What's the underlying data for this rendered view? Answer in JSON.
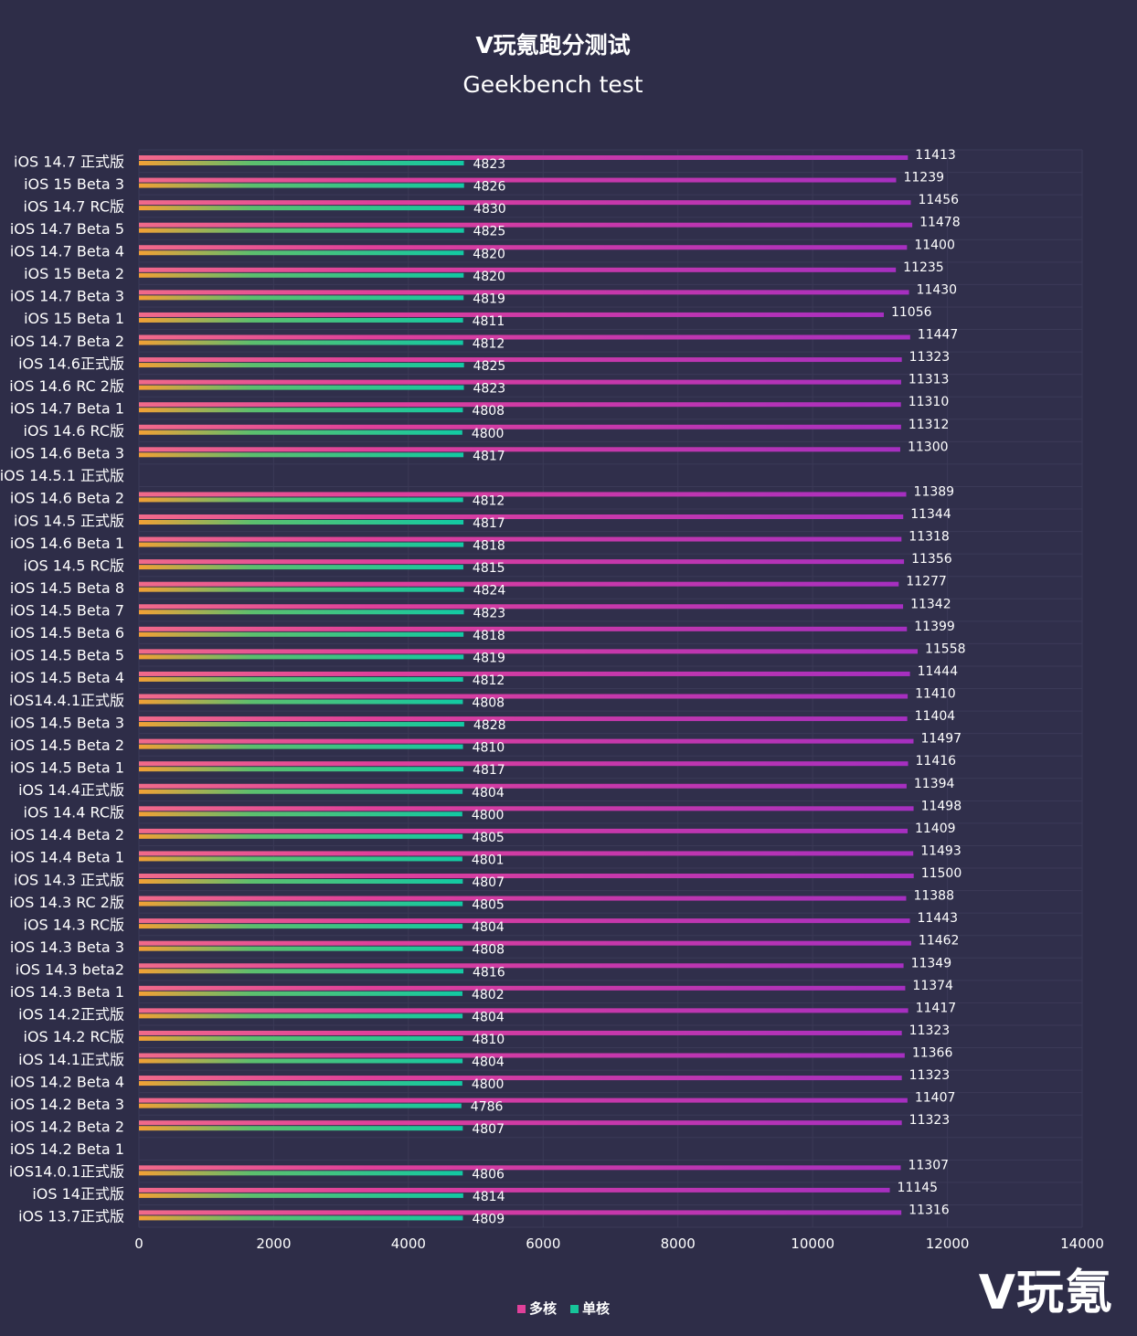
{
  "watermark": "V玩氪",
  "chart_data": {
    "type": "bar",
    "orientation": "horizontal",
    "title": "V玩氪跑分测试",
    "subtitle": "Geekbench test",
    "xlim": [
      0,
      14000
    ],
    "xticks": [
      0,
      2000,
      4000,
      6000,
      8000,
      10000,
      12000,
      14000
    ],
    "grid": true,
    "legend_position": "bottom-center",
    "categories": [
      "iOS 14.7 正式版",
      "iOS 15 Beta 3",
      "iOS 14.7 RC版",
      "iOS 14.7 Beta 5",
      "iOS 14.7 Beta 4",
      "iOS 15 Beta 2",
      "iOS 14.7 Beta 3",
      "iOS 15 Beta 1",
      "iOS 14.7 Beta 2",
      "iOS 14.6正式版",
      "iOS 14.6 RC 2版",
      "iOS 14.7 Beta 1",
      "iOS 14.6 RC版",
      "iOS 14.6 Beta 3",
      "iOS 14.5.1 正式版",
      "iOS 14.6 Beta 2",
      "iOS 14.5 正式版",
      "iOS 14.6 Beta 1",
      "iOS 14.5 RC版",
      "iOS 14.5 Beta 8",
      "iOS 14.5 Beta 7",
      "iOS 14.5 Beta 6",
      "iOS 14.5 Beta 5",
      "iOS 14.5 Beta 4",
      "iOS14.4.1正式版",
      "iOS 14.5 Beta 3",
      "iOS 14.5 Beta 2",
      "iOS 14.5 Beta 1",
      "iOS 14.4正式版",
      "iOS 14.4 RC版",
      "iOS 14.4 Beta 2",
      "iOS 14.4 Beta 1",
      "iOS 14.3 正式版",
      "iOS 14.3 RC 2版",
      "iOS 14.3 RC版",
      "iOS 14.3 Beta 3",
      "iOS 14.3 beta2",
      "iOS 14.3 Beta 1",
      "iOS 14.2正式版",
      "iOS 14.2 RC版",
      "iOS 14.1正式版",
      "iOS 14.2 Beta 4",
      "iOS 14.2 Beta 3",
      "iOS 14.2 Beta 2",
      "iOS 14.2 Beta 1",
      "iOS14.0.1正式版",
      "iOS 14正式版",
      "iOS 13.7正式版"
    ],
    "series": [
      {
        "name": "多核",
        "color": "#e0409a",
        "values": [
          11413,
          11239,
          11456,
          11478,
          11400,
          11235,
          11430,
          11056,
          11447,
          11323,
          11313,
          11310,
          11312,
          11300,
          null,
          11389,
          11344,
          11318,
          11356,
          11277,
          11342,
          11399,
          11558,
          11444,
          11410,
          11404,
          11497,
          11416,
          11394,
          11498,
          11409,
          11493,
          11500,
          11388,
          11443,
          11462,
          11349,
          11374,
          11417,
          11323,
          11366,
          11323,
          11407,
          11323,
          null,
          11307,
          11145,
          11316
        ]
      },
      {
        "name": "单核",
        "color": "#17c49a",
        "values": [
          4823,
          4826,
          4830,
          4825,
          4820,
          4820,
          4819,
          4811,
          4812,
          4825,
          4823,
          4808,
          4800,
          4817,
          null,
          4812,
          4817,
          4818,
          4815,
          4824,
          4823,
          4818,
          4819,
          4812,
          4808,
          4828,
          4810,
          4817,
          4804,
          4800,
          4805,
          4801,
          4807,
          4805,
          4804,
          4808,
          4816,
          4802,
          4804,
          4810,
          4804,
          4800,
          4786,
          4807,
          null,
          4806,
          4814,
          4809
        ]
      }
    ],
    "colors": {
      "background": "#2e2d48",
      "grid": "#3b3a57",
      "text": "#ffffff"
    }
  }
}
